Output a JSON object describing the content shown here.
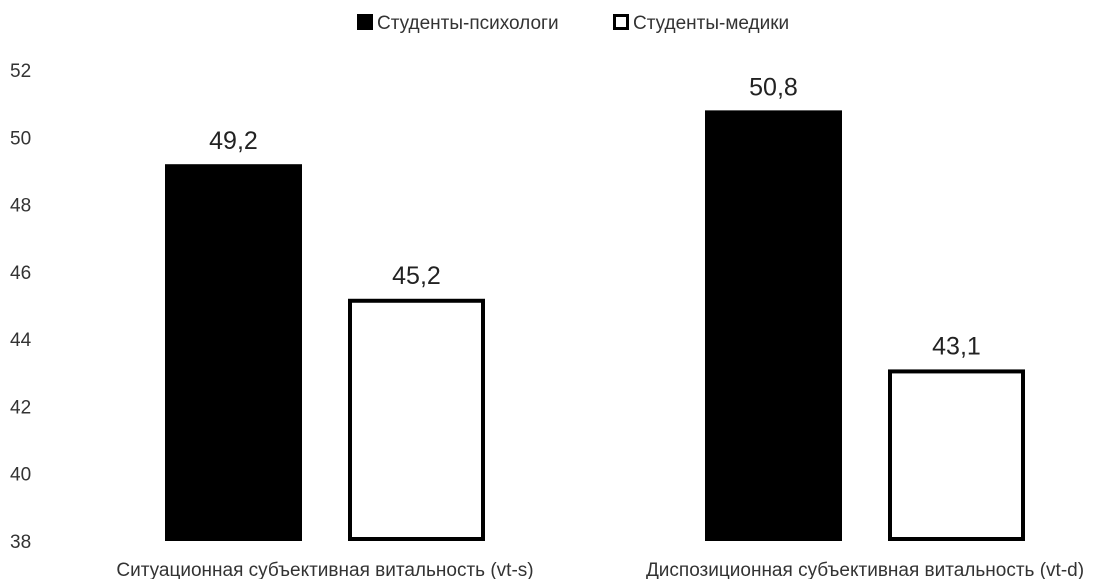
{
  "chart_data": {
    "type": "bar",
    "title": "",
    "xlabel": "",
    "ylabel": "",
    "categories": [
      "Ситуационная субъективная витальность (vt-s)",
      "Диспозиционная субъективная витальность (vt-d)"
    ],
    "series": [
      {
        "name": "Студенты-психологи",
        "values": [
          49.2,
          50.8
        ],
        "labels": [
          "49,2",
          "50,8"
        ],
        "style": "filled",
        "color": "#000000"
      },
      {
        "name": "Студенты-медики",
        "values": [
          45.2,
          43.1
        ],
        "labels": [
          "45,2",
          "43,1"
        ],
        "style": "outline",
        "color": "#ffffff",
        "stroke": "#000000"
      }
    ],
    "ylim": [
      38,
      52
    ],
    "yticks": [
      38,
      40,
      42,
      44,
      46,
      48,
      50,
      52
    ],
    "grid": false,
    "legend": "top-center"
  }
}
